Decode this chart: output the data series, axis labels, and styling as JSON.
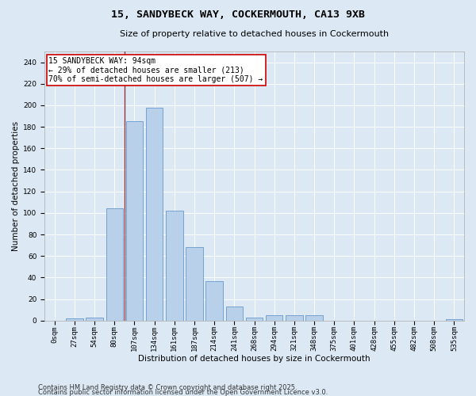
{
  "title_line1": "15, SANDYBECK WAY, COCKERMOUTH, CA13 9XB",
  "title_line2": "Size of property relative to detached houses in Cockermouth",
  "xlabel": "Distribution of detached houses by size in Cockermouth",
  "ylabel": "Number of detached properties",
  "categories": [
    "0sqm",
    "27sqm",
    "54sqm",
    "80sqm",
    "107sqm",
    "134sqm",
    "161sqm",
    "187sqm",
    "214sqm",
    "241sqm",
    "268sqm",
    "294sqm",
    "321sqm",
    "348sqm",
    "375sqm",
    "401sqm",
    "428sqm",
    "455sqm",
    "482sqm",
    "508sqm",
    "535sqm"
  ],
  "values": [
    0,
    2,
    3,
    104,
    185,
    198,
    102,
    68,
    37,
    13,
    3,
    5,
    5,
    5,
    0,
    0,
    0,
    0,
    0,
    0,
    1
  ],
  "bar_color": "#b8d0ea",
  "bar_edge_color": "#6699cc",
  "bar_width": 0.85,
  "vline_x": 3.5,
  "vline_color": "#993333",
  "annotation_text": "15 SANDYBECK WAY: 94sqm\n← 29% of detached houses are smaller (213)\n70% of semi-detached houses are larger (507) →",
  "annotation_box_color": "#ffffff",
  "annotation_box_edge": "#cc0000",
  "ylim": [
    0,
    250
  ],
  "yticks": [
    0,
    20,
    40,
    60,
    80,
    100,
    120,
    140,
    160,
    180,
    200,
    220,
    240
  ],
  "background_color": "#dce9f5",
  "footer_line1": "Contains HM Land Registry data © Crown copyright and database right 2025.",
  "footer_line2": "Contains public sector information licensed under the Open Government Licence v3.0.",
  "title_fontsize": 9.5,
  "subtitle_fontsize": 8,
  "axis_label_fontsize": 7.5,
  "tick_fontsize": 6.5,
  "annotation_fontsize": 7,
  "footer_fontsize": 6
}
